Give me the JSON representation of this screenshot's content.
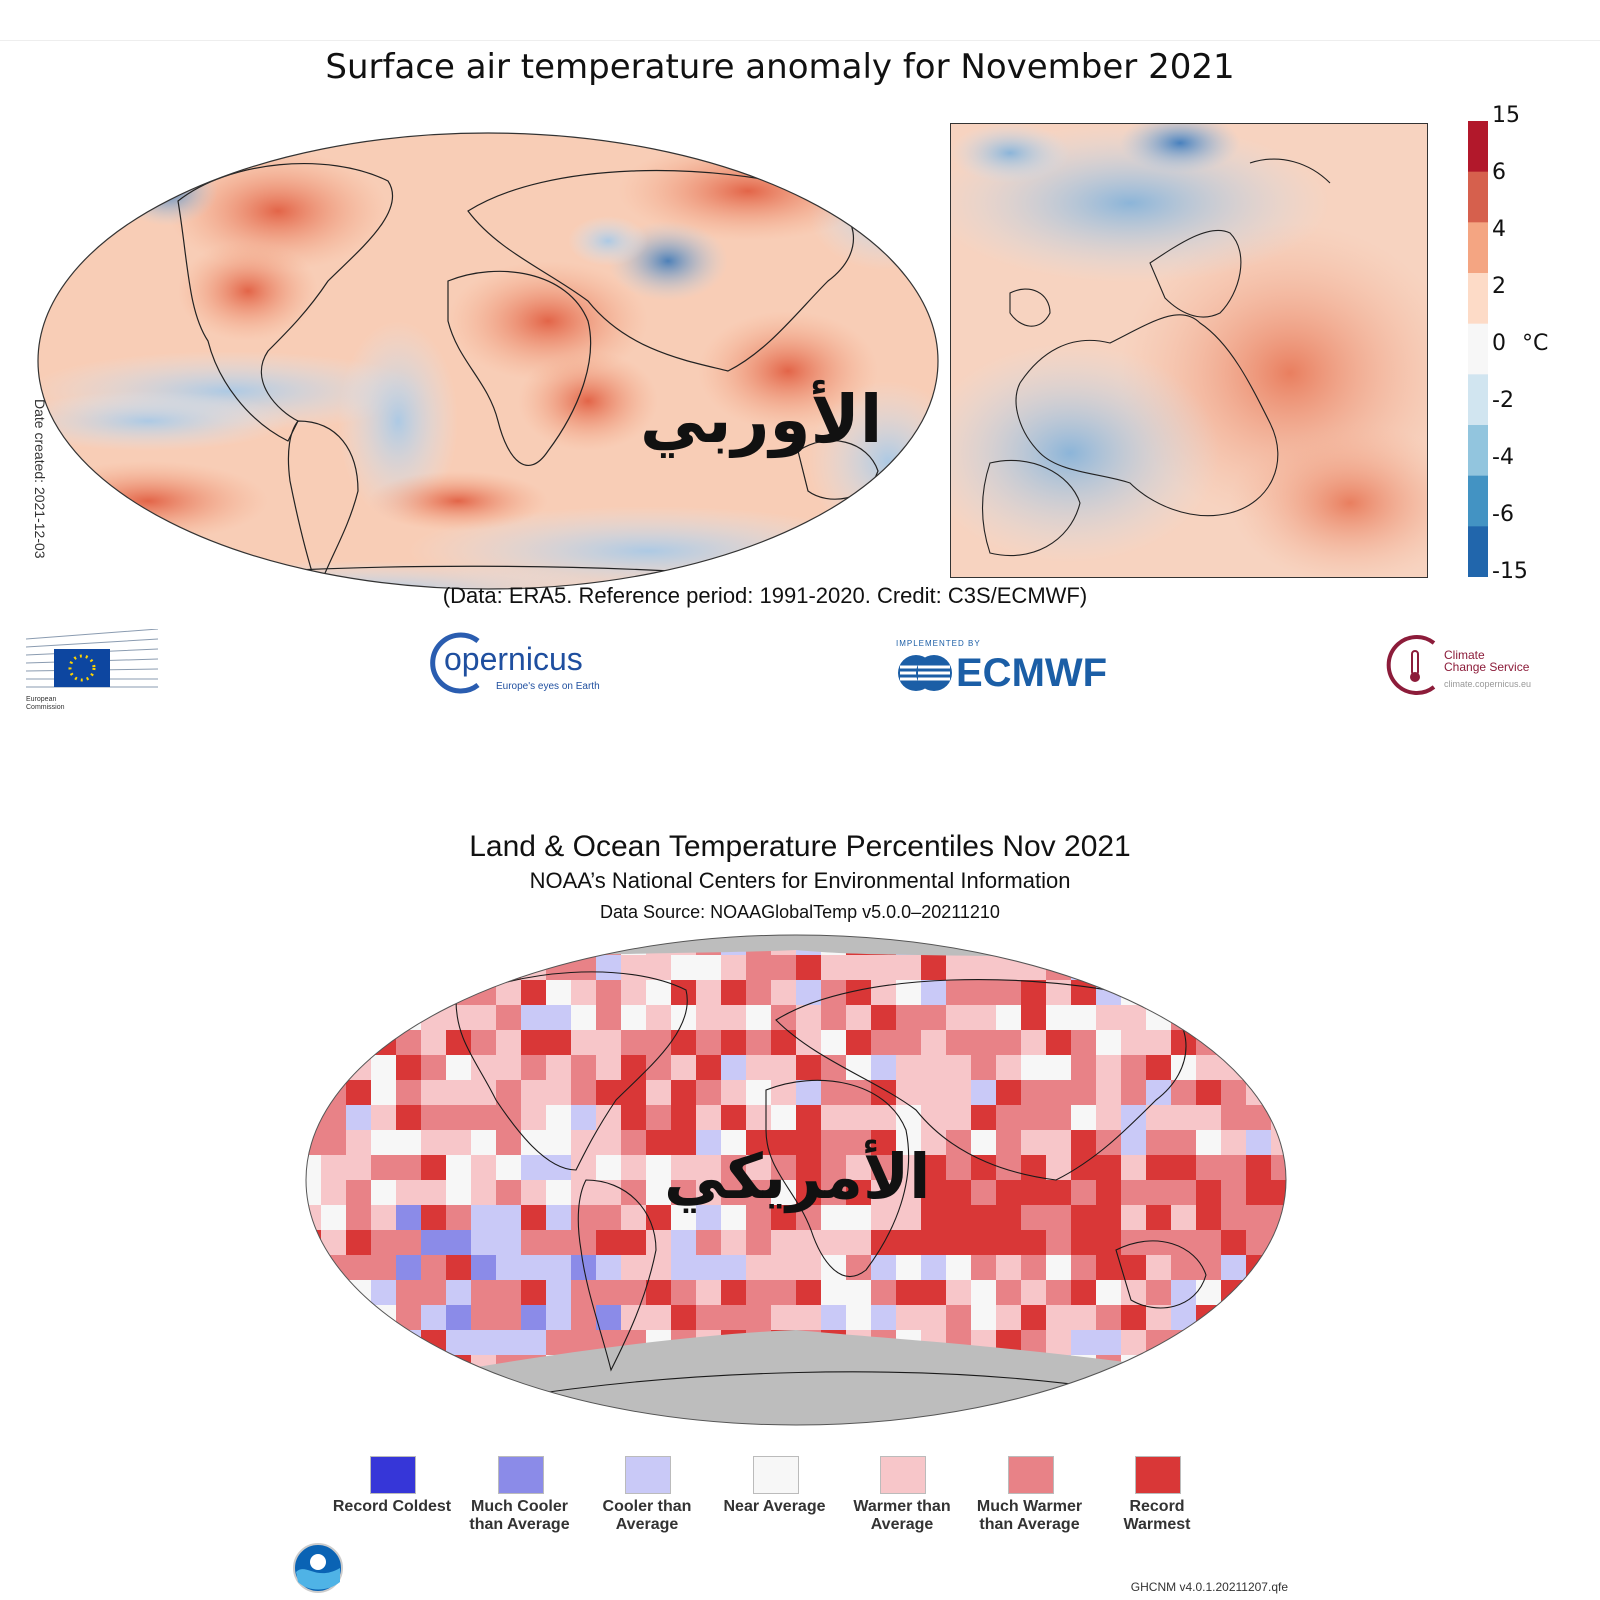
{
  "copernicus_panel": {
    "title": "Surface air temperature anomaly for November 2021",
    "credit": "(Data: ERA5.  Reference period: 1991-2020.  Credit: C3S/ECMWF)",
    "date_created": "Date created: 2021-12-03",
    "colorbar": {
      "ticks": [
        "15",
        "6",
        "4",
        "2",
        "0",
        "-2",
        "-4",
        "-6",
        "-15"
      ],
      "unit": "°C",
      "colors": [
        "#b2182b",
        "#d6604d",
        "#f4a582",
        "#fddbc7",
        "#f7f7f7",
        "#d1e5f0",
        "#92c5de",
        "#4393c3",
        "#2166ac"
      ]
    },
    "overlay_text": "الأوربي",
    "logos": {
      "european_commission": [
        "European",
        "Commission"
      ],
      "copernicus": "opernicus",
      "copernicus_sub": "Europe's eyes on Earth",
      "ecmwf_small": "IMPLEMENTED BY",
      "ecmwf": "ECMWF",
      "climate_change_service": [
        "Climate",
        "Change Service"
      ],
      "climate_url": "climate.copernicus.eu"
    }
  },
  "noaa_panel": {
    "title": "Land & Ocean Temperature Percentiles Nov 2021",
    "subtitle": "NOAA’s National Centers for Environmental Information",
    "data_source": "Data Source: NOAAGlobalTemp v5.0.0–20211210",
    "overlay_text": "الأمريكي",
    "footer": "GHCNM v4.0.1.20211207.qfe",
    "noaa_logo": "NOAA",
    "legend": [
      {
        "label": "Record Coldest",
        "color": "#3636d8"
      },
      {
        "label": "Much Cooler than Average",
        "color": "#8b8be8"
      },
      {
        "label": "Cooler than Average",
        "color": "#c9c9f7"
      },
      {
        "label": "Near Average",
        "color": "#f7f7f7"
      },
      {
        "label": "Warmer than Average",
        "color": "#f7c6c9"
      },
      {
        "label": "Much Warmer than Average",
        "color": "#e88287"
      },
      {
        "label": "Record Warmest",
        "color": "#d93737"
      }
    ]
  }
}
